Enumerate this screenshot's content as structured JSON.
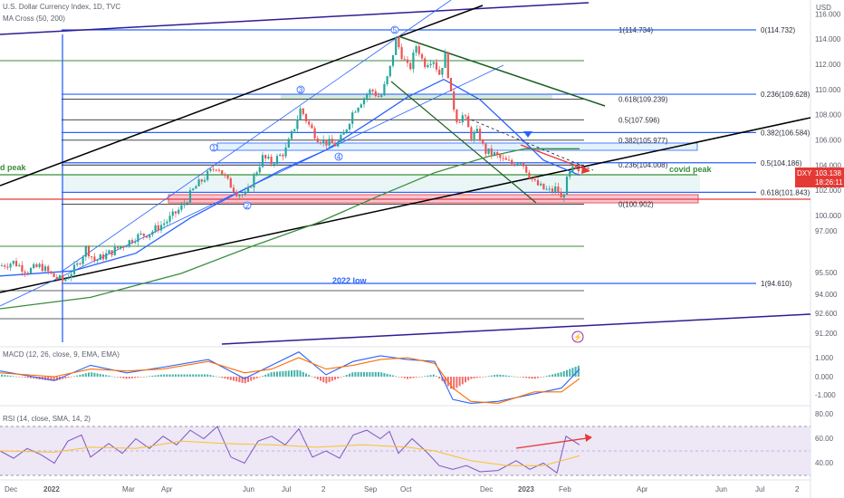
{
  "header": {
    "title": "U.S. Dollar Currency Index, 1D, TVC",
    "ma_label": "MA Cross (50, 200)",
    "macd_label": "MACD (12, 26, close, 9, EMA, EMA)",
    "rsi_label": "RSI (14, close, SMA, 14, 2)",
    "currency": "USD"
  },
  "price_badge": {
    "symbol": "DXY",
    "price": "103.138",
    "countdown": "18:26:11"
  },
  "colors": {
    "up": "#26a69a",
    "down": "#ef5350",
    "blue": "#2962ff",
    "green": "#388e3c",
    "black": "#000000",
    "navy": "#311b92",
    "red": "#e53935",
    "rsi_band": "#ede7f6",
    "macd_line": "#2962ff",
    "signal_line": "#ff6d00",
    "rsi_line": "#7e57c2",
    "rsi_ma": "#fbc02d"
  },
  "chart_data": [
    {
      "type": "candlestick",
      "title": "U.S. Dollar Currency Index, 1D, TVC",
      "ylabel": "USD",
      "ylim": [
        90.5,
        117.0
      ],
      "x_ticks": [
        "Dec",
        "2022",
        "Mar",
        "Apr",
        "Jun",
        "Jul",
        "2",
        "Sep",
        "Oct",
        "Dec",
        "2023",
        "Feb",
        "Apr",
        "Jun",
        "Jul",
        "2"
      ],
      "y_ticks": [
        "116.000",
        "114.000",
        "112.000",
        "110.000",
        "108.000",
        "106.000",
        "104.000",
        "102.000",
        "100.000",
        "97.000",
        "95.500",
        "94.000",
        "92.600",
        "91.200"
      ],
      "last_price": 103.138,
      "series_path": [
        [
          0,
          96.0
        ],
        [
          15,
          96.3
        ],
        [
          30,
          95.6
        ],
        [
          45,
          96.0
        ],
        [
          58,
          95.2
        ],
        [
          70,
          94.8
        ],
        [
          85,
          96.0
        ],
        [
          95,
          97.4
        ],
        [
          105,
          96.4
        ],
        [
          120,
          97.0
        ],
        [
          135,
          97.6
        ],
        [
          150,
          98.3
        ],
        [
          165,
          98.6
        ],
        [
          185,
          99.6
        ],
        [
          200,
          100.6
        ],
        [
          215,
          102.2
        ],
        [
          230,
          103.3
        ],
        [
          240,
          104.0
        ],
        [
          250,
          102.8
        ],
        [
          262,
          101.8
        ],
        [
          272,
          101.6
        ],
        [
          280,
          103.0
        ],
        [
          290,
          104.6
        ],
        [
          300,
          104.2
        ],
        [
          315,
          105.1
        ],
        [
          325,
          107.0
        ],
        [
          332,
          108.5
        ],
        [
          340,
          107.3
        ],
        [
          350,
          106.2
        ],
        [
          360,
          105.8
        ],
        [
          372,
          105.6
        ],
        [
          380,
          106.5
        ],
        [
          390,
          108.3
        ],
        [
          400,
          109.2
        ],
        [
          410,
          110.0
        ],
        [
          420,
          109.3
        ],
        [
          430,
          111.4
        ],
        [
          437,
          114.0
        ],
        [
          445,
          112.5
        ],
        [
          452,
          111.5
        ],
        [
          460,
          113.6
        ],
        [
          468,
          112.0
        ],
        [
          478,
          112.5
        ],
        [
          485,
          111.2
        ],
        [
          492,
          112.8
        ],
        [
          498,
          109.5
        ],
        [
          505,
          107.5
        ],
        [
          512,
          108.0
        ],
        [
          520,
          106.3
        ],
        [
          528,
          106.6
        ],
        [
          535,
          105.1
        ],
        [
          545,
          104.9
        ],
        [
          555,
          104.4
        ],
        [
          565,
          104.1
        ],
        [
          575,
          104.4
        ],
        [
          583,
          103.4
        ],
        [
          590,
          102.6
        ],
        [
          600,
          102.1
        ],
        [
          608,
          101.9
        ],
        [
          615,
          102.2
        ],
        [
          620,
          101.2
        ],
        [
          627,
          103.0
        ],
        [
          633,
          103.7
        ],
        [
          640,
          103.2
        ]
      ],
      "moving_averages": [
        {
          "name": "MA 50",
          "color": "#2962ff",
          "points": [
            [
              0,
              95.2
            ],
            [
              80,
              95.6
            ],
            [
              150,
              97.0
            ],
            [
              210,
              99.8
            ],
            [
              260,
              101.7
            ],
            [
              310,
              103.6
            ],
            [
              360,
              105.2
            ],
            [
              410,
              107.5
            ],
            [
              450,
              109.4
            ],
            [
              490,
              110.8
            ],
            [
              530,
              109.2
            ],
            [
              570,
              106.5
            ],
            [
              600,
              104.4
            ],
            [
              640,
              103.2
            ]
          ]
        },
        {
          "name": "MA 200",
          "color": "#388e3c",
          "points": [
            [
              0,
              92.6
            ],
            [
              100,
              93.5
            ],
            [
              200,
              95.4
            ],
            [
              280,
              97.6
            ],
            [
              350,
              99.4
            ],
            [
              420,
              101.6
            ],
            [
              480,
              103.4
            ],
            [
              540,
              104.7
            ],
            [
              580,
              105.3
            ],
            [
              640,
              105.3
            ]
          ]
        }
      ],
      "fibonacci_left": [
        {
          "label": "1(114.734)",
          "price": 114.734
        },
        {
          "label": "0.618(109.239)",
          "price": 109.239
        },
        {
          "label": "0.5(107.596)",
          "price": 107.596
        },
        {
          "label": "0.382(105.977)",
          "price": 105.977
        },
        {
          "label": "0.236(104.008)",
          "price": 104.008
        },
        {
          "label": "0(100.902)",
          "price": 100.902
        }
      ],
      "fibonacci_right": [
        {
          "label": "0(114.732)",
          "price": 114.732
        },
        {
          "label": "0.236(109.628)",
          "price": 109.628
        },
        {
          "label": "0.382(106.584)",
          "price": 106.584
        },
        {
          "label": "0.5(104.186)",
          "price": 104.186
        },
        {
          "label": "0.618(101.843)",
          "price": 101.843
        },
        {
          "label": "1(94.610)",
          "price": 94.61
        }
      ],
      "annotations": [
        {
          "text": "covid peak",
          "price": 103.0
        },
        {
          "text": "2022 low",
          "price": 94.6
        },
        {
          "text": "d peak",
          "price": 103.0
        }
      ],
      "elliott_waves": [
        "1",
        "2",
        "3",
        "4",
        "5"
      ]
    },
    {
      "type": "line",
      "title": "MACD (12, 26, close, 9, EMA, EMA)",
      "y_ticks": [
        "1.000",
        "0.000",
        "-1.000"
      ],
      "ylim": [
        -1.8,
        2.0
      ],
      "series": [
        {
          "name": "MACD",
          "points": [
            [
              0,
              0.3
            ],
            [
              60,
              -0.2
            ],
            [
              100,
              0.6
            ],
            [
              140,
              0.2
            ],
            [
              180,
              0.5
            ],
            [
              230,
              0.9
            ],
            [
              270,
              -0.1
            ],
            [
              300,
              0.6
            ],
            [
              330,
              1.3
            ],
            [
              360,
              0.1
            ],
            [
              390,
              0.8
            ],
            [
              420,
              1.1
            ],
            [
              450,
              0.9
            ],
            [
              480,
              0.8
            ],
            [
              500,
              -1.2
            ],
            [
              520,
              -1.4
            ],
            [
              550,
              -1.3
            ],
            [
              590,
              -0.9
            ],
            [
              620,
              -0.6
            ],
            [
              640,
              0.4
            ]
          ]
        },
        {
          "name": "Signal",
          "points": [
            [
              0,
              0.2
            ],
            [
              60,
              0.0
            ],
            [
              100,
              0.4
            ],
            [
              140,
              0.3
            ],
            [
              180,
              0.4
            ],
            [
              230,
              0.8
            ],
            [
              270,
              0.2
            ],
            [
              300,
              0.4
            ],
            [
              330,
              1.0
            ],
            [
              360,
              0.4
            ],
            [
              390,
              0.6
            ],
            [
              420,
              0.9
            ],
            [
              450,
              1.0
            ],
            [
              480,
              0.7
            ],
            [
              500,
              -0.6
            ],
            [
              520,
              -1.3
            ],
            [
              550,
              -1.4
            ],
            [
              590,
              -0.8
            ],
            [
              620,
              -0.8
            ],
            [
              640,
              -0.1
            ]
          ]
        }
      ]
    },
    {
      "type": "line",
      "title": "RSI (14, close, SMA, 14, 2)",
      "y_ticks": [
        "80.00",
        "60.00",
        "40.00"
      ],
      "ylim": [
        20,
        85
      ],
      "band": [
        30,
        70
      ],
      "series": [
        {
          "name": "RSI",
          "points": [
            [
              0,
              50
            ],
            [
              15,
              44
            ],
            [
              30,
              52
            ],
            [
              45,
              47
            ],
            [
              60,
              40
            ],
            [
              75,
              58
            ],
            [
              90,
              63
            ],
            [
              100,
              45
            ],
            [
              120,
              56
            ],
            [
              135,
              48
            ],
            [
              150,
              60
            ],
            [
              165,
              52
            ],
            [
              180,
              62
            ],
            [
              195,
              55
            ],
            [
              210,
              67
            ],
            [
              225,
              60
            ],
            [
              240,
              70
            ],
            [
              255,
              45
            ],
            [
              270,
              40
            ],
            [
              285,
              58
            ],
            [
              300,
              62
            ],
            [
              315,
              55
            ],
            [
              330,
              68
            ],
            [
              345,
              45
            ],
            [
              360,
              50
            ],
            [
              375,
              44
            ],
            [
              390,
              63
            ],
            [
              405,
              67
            ],
            [
              420,
              60
            ],
            [
              430,
              66
            ],
            [
              440,
              48
            ],
            [
              455,
              60
            ],
            [
              470,
              50
            ],
            [
              485,
              38
            ],
            [
              500,
              35
            ],
            [
              515,
              38
            ],
            [
              530,
              33
            ],
            [
              550,
              34
            ],
            [
              570,
              42
            ],
            [
              585,
              35
            ],
            [
              600,
              40
            ],
            [
              615,
              32
            ],
            [
              625,
              62
            ],
            [
              640,
              55
            ]
          ]
        },
        {
          "name": "RSI-based MA",
          "points": [
            [
              0,
              50
            ],
            [
              60,
              49
            ],
            [
              100,
              53
            ],
            [
              150,
              52
            ],
            [
              200,
              58
            ],
            [
              250,
              56
            ],
            [
              300,
              55
            ],
            [
              350,
              53
            ],
            [
              400,
              55
            ],
            [
              450,
              53
            ],
            [
              480,
              50
            ],
            [
              520,
              42
            ],
            [
              560,
              38
            ],
            [
              600,
              38
            ],
            [
              640,
              46
            ]
          ]
        }
      ]
    }
  ],
  "time_ticks": [
    "Dec",
    "2022",
    "Mar",
    "Apr",
    "Jun",
    "Jul",
    "2",
    "Sep",
    "Oct",
    "Dec",
    "2023",
    "Feb",
    "Apr",
    "Jun",
    "Jul",
    "2"
  ]
}
